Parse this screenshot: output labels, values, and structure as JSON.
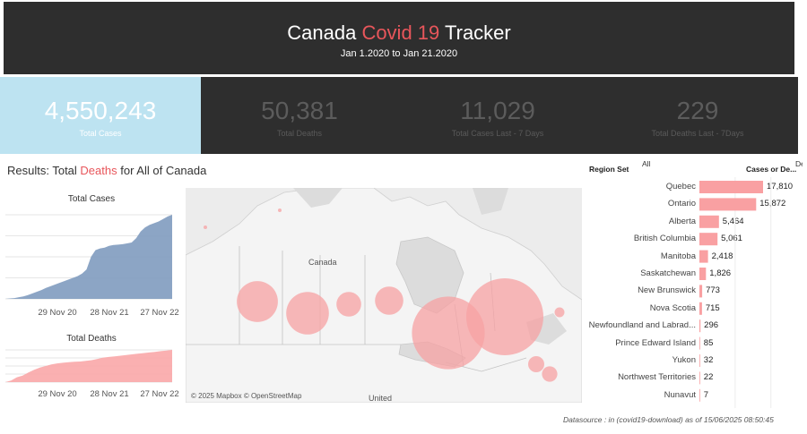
{
  "header": {
    "title_pre": "Canada ",
    "title_highlight": "Covid 19",
    "title_post": " Tracker",
    "subtitle": "Jan 1.2020 to Jan 21.2020"
  },
  "kpis": {
    "total_cases": {
      "value": "4,550,243",
      "label": "Total Cases"
    },
    "total_deaths": {
      "value": "50,381",
      "label": "Total Deaths"
    },
    "cases_7d": {
      "value": "11,029",
      "label": "Total Cases  Last - 7 Days"
    },
    "deaths_7d": {
      "value": "229",
      "label": "Total Deaths Last - 7Days"
    }
  },
  "results": {
    "pre": "Results: Total ",
    "highlight": "Deaths",
    "post": " for All of Canada"
  },
  "colors": {
    "header_bg": "#2e2e2e",
    "highlight": "#e8565b",
    "cases_blue": "#7f9bbf",
    "deaths_pink": "#f9a7a8",
    "kpi_active": "#bde3f1"
  },
  "chart_data": [
    {
      "type": "area",
      "title": "Total Cases",
      "x_ticks": [
        "29 Nov 20",
        "28 Nov 21",
        "27 Nov 22"
      ],
      "note": "cumulative curve; y axis unlabeled",
      "y": [
        0,
        0.5,
        1,
        2,
        3,
        4.5,
        6.5,
        8.5,
        10.5,
        13,
        15,
        17,
        19,
        21,
        23,
        25,
        27,
        30,
        35,
        50,
        58,
        60,
        61,
        63,
        64,
        64.5,
        65,
        66,
        67,
        72,
        80,
        85,
        88,
        90,
        92,
        95,
        98,
        100
      ],
      "ylim": [
        0,
        100
      ]
    },
    {
      "type": "area",
      "title": "Total Deaths",
      "x_ticks": [
        "29 Nov 20",
        "28 Nov 21",
        "27 Nov 22"
      ],
      "note": "cumulative curve; y axis unlabeled",
      "y": [
        0,
        5,
        15,
        20,
        30,
        38,
        45,
        50,
        55,
        58,
        60,
        62,
        63,
        64,
        66,
        68,
        72,
        76,
        78,
        80,
        82,
        84,
        86,
        88,
        90,
        92,
        94,
        96,
        98,
        100
      ],
      "ylim": [
        0,
        100
      ]
    },
    {
      "type": "bar",
      "orientation": "horizontal",
      "title": "",
      "filter_label": "Region Set",
      "filter_value": "All",
      "value_header": "Cases or De...",
      "value_header_cut": "De",
      "categories": [
        "Quebec",
        "Ontario",
        "Alberta",
        "British Columbia",
        "Manitoba",
        "Saskatchewan",
        "New Brunswick",
        "Nova Scotia",
        "Newfoundland and Labrad...",
        "Prince Edward Island",
        "Yukon",
        "Northwest Territories",
        "Nunavut"
      ],
      "values": [
        17810,
        15872,
        5464,
        5061,
        2418,
        1826,
        773,
        715,
        296,
        85,
        32,
        22,
        7
      ],
      "value_labels": [
        "17,810",
        "15,872",
        "5,464",
        "5,061",
        "2,418",
        "1,826",
        "773",
        "715",
        "296",
        "85",
        "32",
        "22",
        "7"
      ],
      "xlim": [
        0,
        20000
      ]
    }
  ],
  "map": {
    "label_canada": "Canada",
    "label_united": "United",
    "credit": "© 2025 Mapbox © OpenStreetMap",
    "bubbles": [
      {
        "region": "British Columbia",
        "value": 5061
      },
      {
        "region": "Alberta",
        "value": 5464
      },
      {
        "region": "Saskatchewan",
        "value": 1826
      },
      {
        "region": "Manitoba",
        "value": 2418
      },
      {
        "region": "Ontario",
        "value": 15872
      },
      {
        "region": "Quebec",
        "value": 17810
      },
      {
        "region": "Newfoundland and Labrador",
        "value": 296
      },
      {
        "region": "New Brunswick",
        "value": 773
      },
      {
        "region": "Nova Scotia",
        "value": 715
      },
      {
        "region": "Yukon",
        "value": 32
      },
      {
        "region": "Northwest Territories",
        "value": 22
      }
    ]
  },
  "footer": {
    "datasource": "Datasource : in (covid19-download) as of 15/06/2025 08:50:45"
  }
}
